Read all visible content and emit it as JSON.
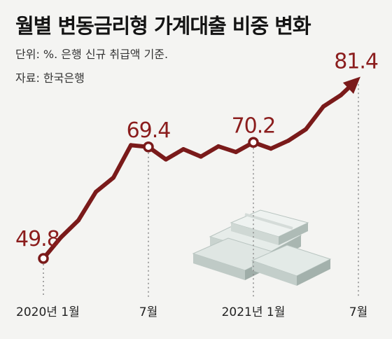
{
  "header": {
    "title": "월별 변동금리형 가계대출 비중 변화",
    "unit_note": "단위: %. 은행 신규 취급액 기준.",
    "source": "자료: 한국은행"
  },
  "colors": {
    "line": "#7a1a1a",
    "label": "#8b1d1d",
    "guide": "#8a8a8a",
    "background": "#f4f4f2"
  },
  "chart_data": {
    "type": "line",
    "title": "월별 변동금리형 가계대출 비중 변화",
    "ylabel": "",
    "xlabel": "",
    "ylim": [
      45,
      85
    ],
    "x": [
      "2020-01",
      "2020-02",
      "2020-03",
      "2020-04",
      "2020-05",
      "2020-06",
      "2020-07",
      "2020-08",
      "2020-09",
      "2020-10",
      "2020-11",
      "2020-12",
      "2021-01",
      "2021-02",
      "2021-03",
      "2021-04",
      "2021-05",
      "2021-06",
      "2021-07"
    ],
    "series": [
      {
        "values": [
          49.8,
          53.5,
          56.5,
          61.5,
          64.0,
          69.7,
          69.4,
          67.2,
          69.0,
          67.7,
          69.5,
          68.5,
          70.2,
          69.1,
          70.5,
          72.5,
          76.5,
          78.5,
          81.4
        ]
      }
    ],
    "tick_labels": [
      {
        "index": 0,
        "text": "2020년 1월"
      },
      {
        "index": 6,
        "text": "7월"
      },
      {
        "index": 12,
        "text": "2021년 1월"
      },
      {
        "index": 18,
        "text": "7월"
      }
    ],
    "highlighted": [
      {
        "index": 0,
        "text": "49.8"
      },
      {
        "index": 6,
        "text": "69.4"
      },
      {
        "index": 12,
        "text": "70.2"
      },
      {
        "index": 18,
        "text": "81.4"
      }
    ],
    "grid": false,
    "legend": "none"
  }
}
